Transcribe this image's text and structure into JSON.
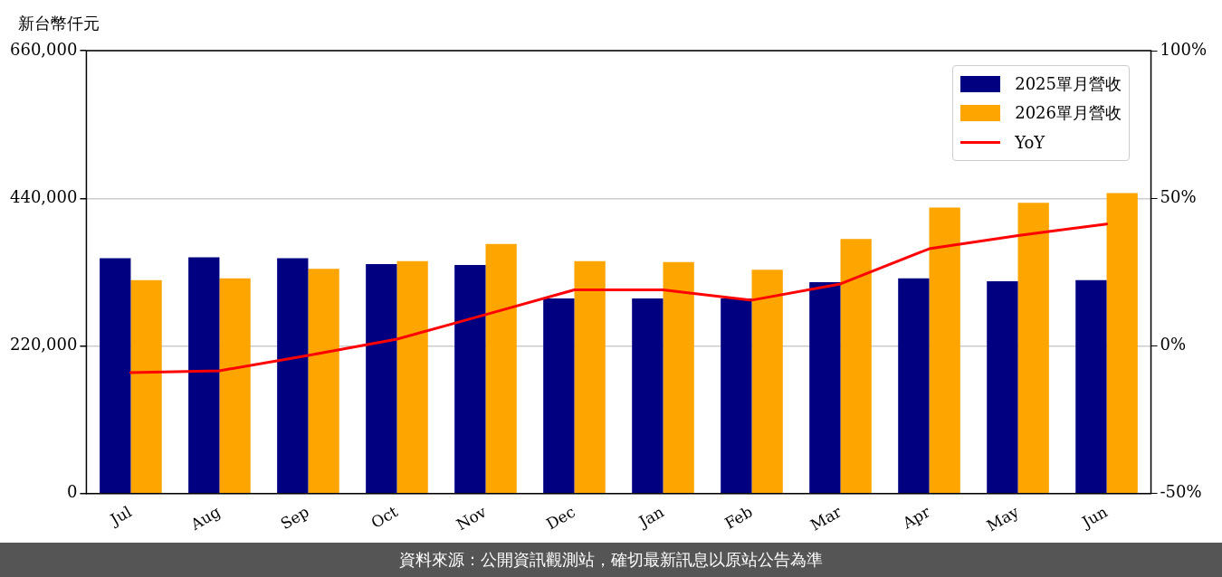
{
  "chart_data": {
    "type": "bar",
    "ylabel": "新台幣仟元",
    "categories": [
      "Jul",
      "Aug",
      "Sep",
      "Oct",
      "Nov",
      "Dec",
      "Jan",
      "Feb",
      "Mar",
      "Apr",
      "May",
      "Jun"
    ],
    "series": [
      {
        "name": "2025單月營收",
        "color": "#000080",
        "values": [
          350700,
          352100,
          350700,
          342100,
          340700,
          290800,
          290800,
          290800,
          315000,
          320700,
          316500,
          317900
        ]
      },
      {
        "name": "2026單月營收",
        "color": "#ffa500",
        "values": [
          317900,
          320700,
          335000,
          346400,
          372000,
          346400,
          345000,
          333600,
          379200,
          426200,
          433400,
          447600
        ]
      },
      {
        "name": "YoY",
        "type": "line",
        "axis": "y2",
        "color": "#ff0000",
        "values": [
          -9.0,
          -8.4,
          -3.2,
          2.3,
          10.6,
          19.0,
          19.0,
          15.5,
          21.0,
          32.9,
          37.4,
          41.3
        ]
      }
    ],
    "ylim": [
      0,
      660000
    ],
    "yticks": [
      {
        "value": 0,
        "label": "0"
      },
      {
        "value": 220000,
        "label": "220,000"
      },
      {
        "value": 440000,
        "label": "440,000"
      },
      {
        "value": 660000,
        "label": "660,000"
      }
    ],
    "y2lim": [
      -50,
      100
    ],
    "y2ticks": [
      {
        "value": -50,
        "label": "-50%"
      },
      {
        "value": 0,
        "label": "0%"
      },
      {
        "value": 50,
        "label": "50%"
      },
      {
        "value": 100,
        "label": "100%"
      }
    ],
    "grid": "y",
    "legend": "top right",
    "marker": "none",
    "line_style": "solid",
    "annotations": [
      "資料來源：公開資訊觀測站，確切最新訊息以原站公告為準"
    ]
  }
}
